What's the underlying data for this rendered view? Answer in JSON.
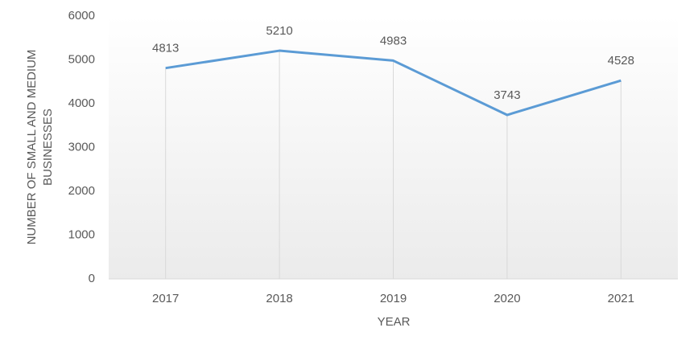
{
  "chart_data": {
    "type": "line",
    "x_label": "YEAR",
    "y_label": [
      "NUMBER OF SMALL AND MEDIUM",
      "BUSINESSES"
    ],
    "categories": [
      "2017",
      "2018",
      "2019",
      "2020",
      "2021"
    ],
    "series": [
      {
        "name": "Businesses",
        "color": "#5b9bd5",
        "values": [
          4813,
          5210,
          4983,
          3743,
          4528
        ]
      }
    ],
    "ylim": [
      0,
      6000
    ],
    "yticks": [
      0,
      1000,
      2000,
      3000,
      4000,
      5000,
      6000
    ],
    "grid": "vertical"
  }
}
